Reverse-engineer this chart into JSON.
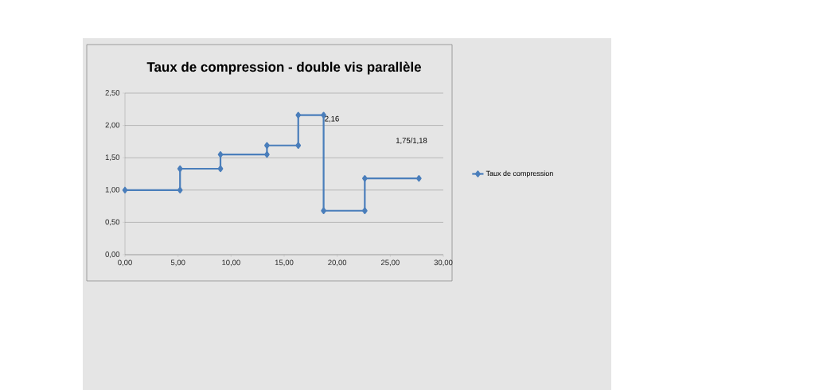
{
  "chart_data": {
    "type": "line",
    "title": "Taux de compression - double vis parallèle",
    "x": [
      0,
      5.19,
      5.19,
      9.0,
      9.0,
      13.38,
      13.38,
      16.33,
      16.33,
      18.72,
      18.72,
      22.6,
      22.6,
      27.7
    ],
    "series": [
      {
        "name": "Taux de compression",
        "color": "#4a7ebb",
        "values": [
          1.0,
          1.0,
          1.33,
          1.33,
          1.55,
          1.55,
          1.69,
          1.69,
          2.16,
          2.16,
          0.68,
          0.68,
          1.18,
          1.18
        ]
      }
    ],
    "xlim": [
      0,
      30
    ],
    "xticks": [
      {
        "value": 0,
        "label": "0,00"
      },
      {
        "value": 5,
        "label": "5,00"
      },
      {
        "value": 10,
        "label": "10,00"
      },
      {
        "value": 15,
        "label": "15,00"
      },
      {
        "value": 20,
        "label": "20,00"
      },
      {
        "value": 25,
        "label": "25,00"
      },
      {
        "value": 30,
        "label": "30,00"
      }
    ],
    "ylim": [
      0,
      2.5
    ],
    "yticks": [
      {
        "value": 0,
        "label": "0,00"
      },
      {
        "value": 0.5,
        "label": "0,50"
      },
      {
        "value": 1,
        "label": "1,00"
      },
      {
        "value": 1.5,
        "label": "1,50"
      },
      {
        "value": 2,
        "label": "2,00"
      },
      {
        "value": 2.5,
        "label": "2,50"
      }
    ],
    "annotations": [
      {
        "text": "2,16",
        "x": 18.72,
        "y": 2.16
      },
      "1,75/1,18"
    ],
    "grid": "y",
    "legend": "right",
    "marker": "diamond",
    "line_style": "solid"
  }
}
